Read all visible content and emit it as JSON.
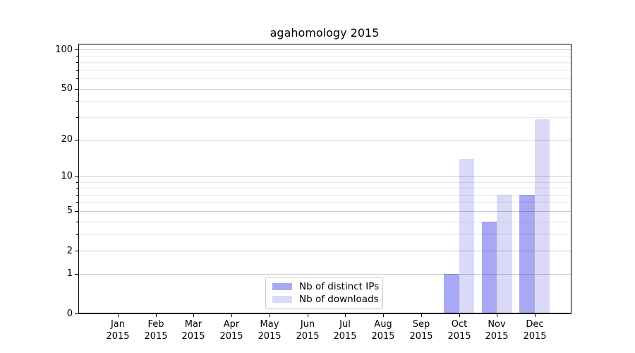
{
  "chart_data": {
    "type": "bar",
    "title": "agahomology 2015",
    "xlabel": "",
    "ylabel": "",
    "categories": [
      "Jan 2015",
      "Feb 2015",
      "Mar 2015",
      "Apr 2015",
      "May 2015",
      "Jun 2015",
      "Jul 2015",
      "Aug 2015",
      "Sep 2015",
      "Oct 2015",
      "Nov 2015",
      "Dec 2015"
    ],
    "series": [
      {
        "name": "Nb of distinct IPs",
        "color": "#a8a8f5",
        "values": [
          0,
          0,
          0,
          0,
          0,
          0,
          0,
          0,
          0,
          1,
          4,
          7
        ]
      },
      {
        "name": "Nb of downloads",
        "color": "#dadaf8",
        "values": [
          0,
          0,
          0,
          0,
          0,
          0,
          0,
          0,
          0,
          14,
          7,
          29
        ]
      }
    ],
    "y_axis": {
      "scale": "log1p",
      "major_ticks": [
        0,
        1,
        2,
        5,
        10,
        20,
        50,
        100
      ],
      "minor_ticks": [
        3,
        4,
        6,
        7,
        8,
        9,
        30,
        40,
        60,
        70,
        80,
        90
      ],
      "ylim": [
        0,
        111
      ]
    },
    "legend": {
      "position": "lower center"
    },
    "grid": true
  },
  "colors": {
    "grid_major": "rgba(0,0,0,0.20)",
    "grid_minor": "rgba(0,0,0,0.085)",
    "spine": "#000000",
    "background": "#ffffff",
    "text": "#000000"
  }
}
